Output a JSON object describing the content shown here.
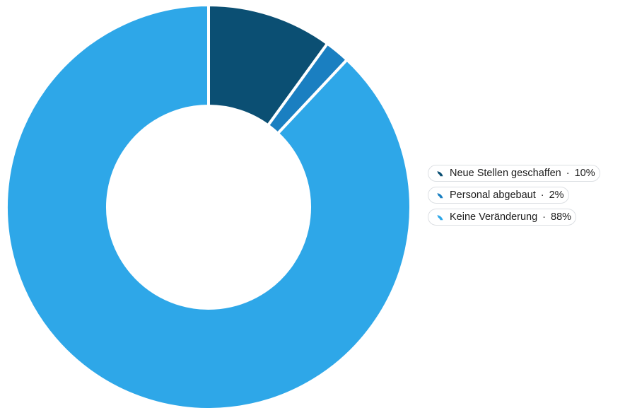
{
  "chart_data": {
    "type": "pie",
    "variant": "donut",
    "title": "",
    "unit": "%",
    "start_angle_deg": 0,
    "direction": "clockwise",
    "legend_position": "right",
    "categories": [
      "Neue Stellen geschaffen",
      "Personal abgebaut",
      "Keine Veränderung"
    ],
    "values": [
      10,
      2,
      88
    ],
    "value_labels": [
      "10%",
      "2%",
      "88%"
    ],
    "colors": [
      "#0b4f73",
      "#1a7fc1",
      "#2ea7e8"
    ]
  },
  "legend": {
    "separator": "·"
  }
}
